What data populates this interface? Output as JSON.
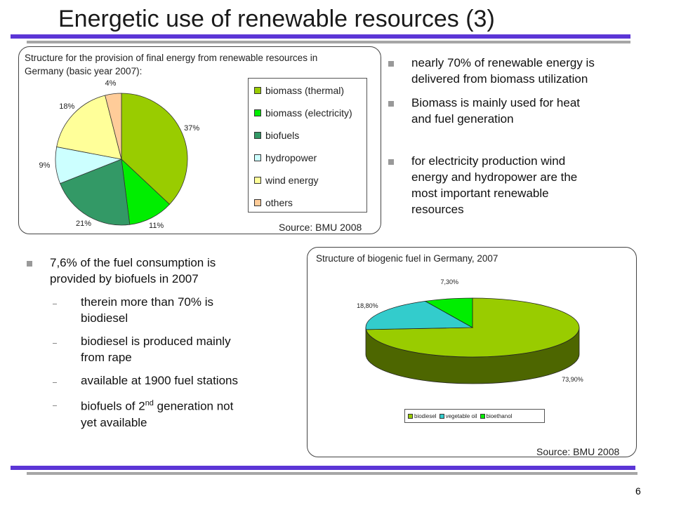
{
  "slide": {
    "title": "Energetic use of renewable resources (3)",
    "page_number": "6"
  },
  "chart_data": [
    {
      "type": "pie",
      "title": "Structure for the provision of final energy from renewable resources in Germany (basic year 2007):",
      "categories": [
        "biomass (thermal)",
        "biomass (electricity)",
        "biofuels",
        "hydropower",
        "wind energy",
        "others"
      ],
      "values": [
        37,
        11,
        21,
        9,
        18,
        4
      ],
      "value_labels": [
        "37%",
        "11%",
        "21%",
        "9%",
        "18%",
        "4%"
      ],
      "colors": [
        "#99cc00",
        "#00ee00",
        "#339966",
        "#ccffff",
        "#ffff99",
        "#ffcc99"
      ],
      "legend_position": "right",
      "source": "Source: BMU 2008"
    },
    {
      "type": "pie",
      "title": "Structure of biogenic fuel in Germany, 2007",
      "categories": [
        "biodiesel",
        "vegetable oil",
        "bioethanol"
      ],
      "values": [
        73.9,
        18.8,
        7.3
      ],
      "value_labels": [
        "73,90%",
        "18,80%",
        "7,30%"
      ],
      "colors": [
        "#99cc00",
        "#33cccc",
        "#00ee00"
      ],
      "legend_position": "bottom",
      "source": "Source: BMU 2008"
    }
  ],
  "right_bullets": [
    {
      "lines": [
        "nearly 70% of renewable energy is",
        "delivered from biomass utilization"
      ]
    },
    {
      "lines": [
        "Biomass is mainly used for heat",
        "and fuel generation"
      ]
    },
    {
      "lines": [
        "for electricity production wind",
        "energy and hydropower are the",
        "most important renewable",
        "resources"
      ]
    }
  ],
  "left_bullet": {
    "lines": [
      "7,6% of the fuel consumption is",
      "provided by biofuels in 2007"
    ],
    "subs": [
      {
        "lines": [
          "therein more than 70% is",
          "biodiesel"
        ]
      },
      {
        "lines": [
          "biodiesel is produced mainly",
          "from rape"
        ]
      },
      {
        "lines": [
          "available at 1900 fuel stations"
        ]
      },
      {
        "lines": [
          "biofuels of 2",
          "yet available"
        ],
        "sup": "nd",
        "after_sup": " generation not"
      }
    ]
  }
}
